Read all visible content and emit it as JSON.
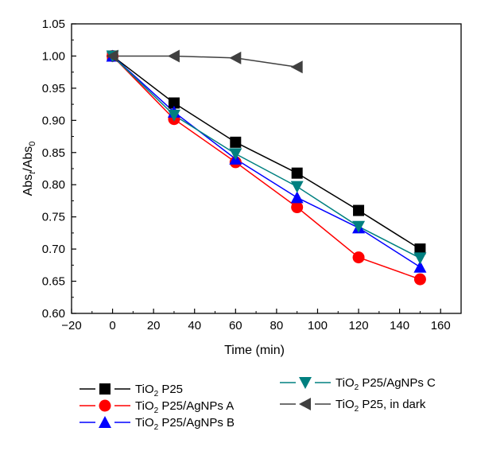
{
  "chart_data": {
    "type": "line",
    "xlabel": "Time (min)",
    "ylabel": {
      "base": "Abs",
      "sub1": "t",
      "slash": "/Abs",
      "sub2": "0"
    },
    "xlim": [
      -20,
      170
    ],
    "ylim": [
      0.6,
      1.05
    ],
    "xticks": [
      -20,
      0,
      20,
      40,
      60,
      80,
      100,
      120,
      140,
      160
    ],
    "yticks": [
      "0.60",
      "0.65",
      "0.70",
      "0.75",
      "0.80",
      "0.85",
      "0.90",
      "0.95",
      "1.00",
      "1.05"
    ],
    "grid": false,
    "legend_position": "bottom",
    "series": [
      {
        "name": "P25",
        "prefix": "TiO",
        "sub": "2",
        "color": "#000000",
        "marker": "square",
        "x": [
          0,
          30,
          60,
          90,
          120,
          150
        ],
        "y": [
          1.0,
          0.927,
          0.866,
          0.818,
          0.76,
          0.7
        ]
      },
      {
        "name": "P25/AgNPs A",
        "prefix": "TiO",
        "sub": "2",
        "color": "#ff0000",
        "marker": "circle",
        "x": [
          0,
          30,
          60,
          90,
          120,
          150
        ],
        "y": [
          1.0,
          0.902,
          0.835,
          0.765,
          0.687,
          0.653
        ]
      },
      {
        "name": "P25/AgNPs B",
        "prefix": "TiO",
        "sub": "2",
        "color": "#0000ff",
        "marker": "triangle-up",
        "x": [
          0,
          30,
          60,
          90,
          120,
          150
        ],
        "y": [
          1.0,
          0.913,
          0.84,
          0.78,
          0.733,
          0.672
        ]
      },
      {
        "name": "P25/AgNPs C",
        "prefix": "TiO",
        "sub": "2",
        "color": "#008080",
        "marker": "triangle-down",
        "x": [
          0,
          30,
          60,
          90,
          120,
          150
        ],
        "y": [
          1.0,
          0.908,
          0.848,
          0.797,
          0.735,
          0.686
        ]
      },
      {
        "name": "P25, in dark",
        "prefix": "TiO",
        "sub": "2",
        "color": "#404040",
        "marker": "triangle-left",
        "x": [
          0,
          30,
          60,
          90
        ],
        "y": [
          1.0,
          1.0,
          0.997,
          0.983
        ]
      }
    ]
  }
}
